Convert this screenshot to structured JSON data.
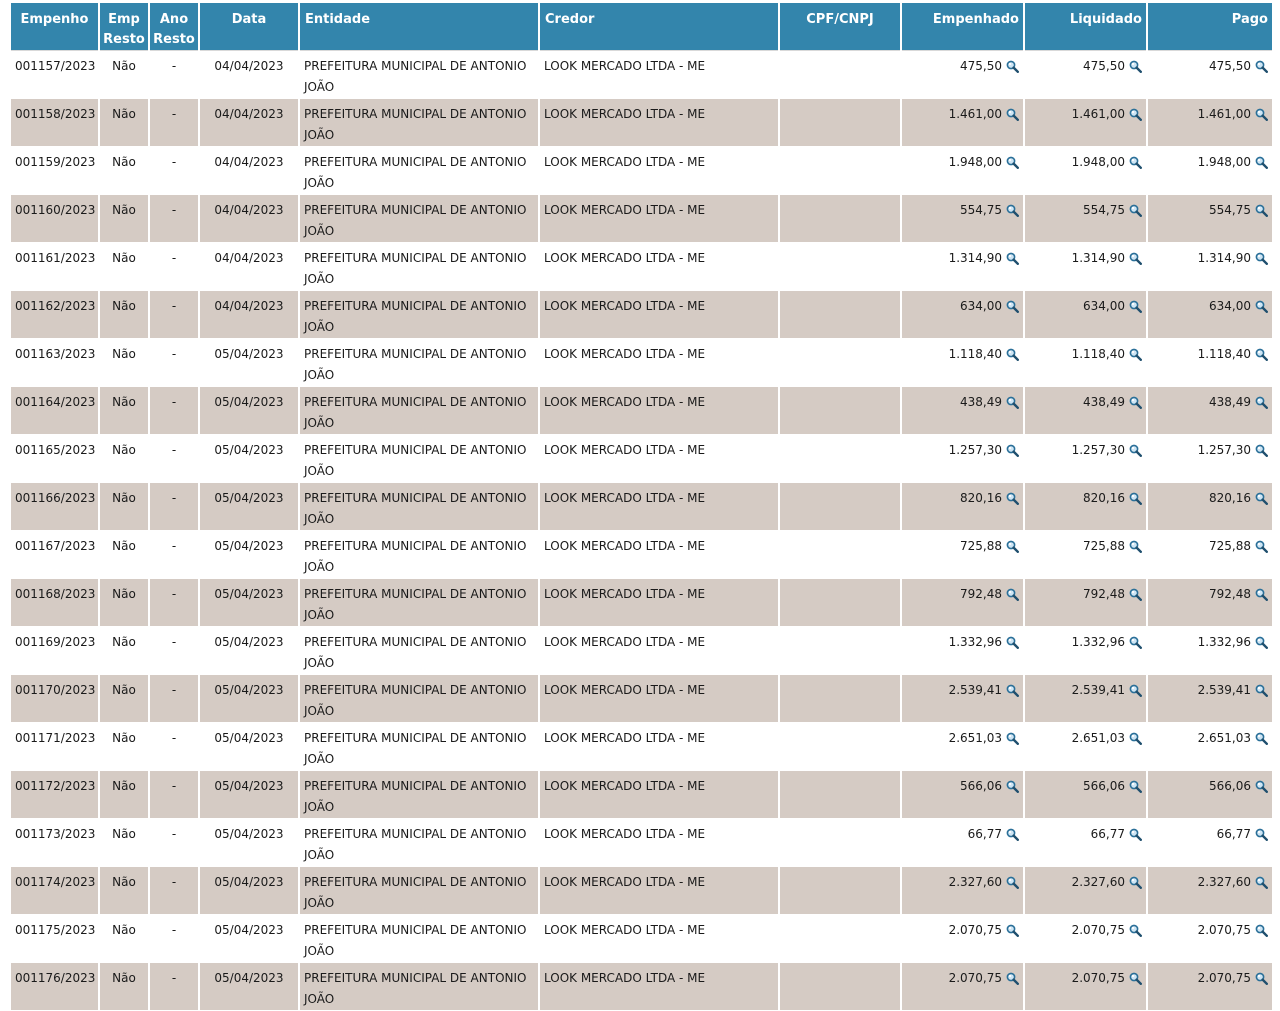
{
  "columns": {
    "empenho": "Empenho",
    "emp_resto": "Emp Resto",
    "ano_resto": "Ano Resto",
    "data": "Data",
    "entidade": "Entidade",
    "credor": "Credor",
    "cpf_cnpj": "CPF/CNPJ",
    "empenhado": "Empenhado",
    "liquidado": "Liquidado",
    "pago": "Pago"
  },
  "icon": "magnifier-icon",
  "rows": [
    {
      "empenho": "001157/2023",
      "emp_resto": "Não",
      "ano_resto": "-",
      "data": "04/04/2023",
      "entidade": "PREFEITURA MUNICIPAL DE ANTONIO JOÃO",
      "credor": "LOOK MERCADO LTDA - ME",
      "cpf": "",
      "empenhado": "475,50",
      "liquidado": "475,50",
      "pago": "475,50"
    },
    {
      "empenho": "001158/2023",
      "emp_resto": "Não",
      "ano_resto": "-",
      "data": "04/04/2023",
      "entidade": "PREFEITURA MUNICIPAL DE ANTONIO JOÃO",
      "credor": "LOOK MERCADO LTDA - ME",
      "cpf": "",
      "empenhado": "1.461,00",
      "liquidado": "1.461,00",
      "pago": "1.461,00"
    },
    {
      "empenho": "001159/2023",
      "emp_resto": "Não",
      "ano_resto": "-",
      "data": "04/04/2023",
      "entidade": "PREFEITURA MUNICIPAL DE ANTONIO JOÃO",
      "credor": "LOOK MERCADO LTDA - ME",
      "cpf": "",
      "empenhado": "1.948,00",
      "liquidado": "1.948,00",
      "pago": "1.948,00"
    },
    {
      "empenho": "001160/2023",
      "emp_resto": "Não",
      "ano_resto": "-",
      "data": "04/04/2023",
      "entidade": "PREFEITURA MUNICIPAL DE ANTONIO JOÃO",
      "credor": "LOOK MERCADO LTDA - ME",
      "cpf": "",
      "empenhado": "554,75",
      "liquidado": "554,75",
      "pago": "554,75"
    },
    {
      "empenho": "001161/2023",
      "emp_resto": "Não",
      "ano_resto": "-",
      "data": "04/04/2023",
      "entidade": "PREFEITURA MUNICIPAL DE ANTONIO JOÃO",
      "credor": "LOOK MERCADO LTDA - ME",
      "cpf": "",
      "empenhado": "1.314,90",
      "liquidado": "1.314,90",
      "pago": "1.314,90"
    },
    {
      "empenho": "001162/2023",
      "emp_resto": "Não",
      "ano_resto": "-",
      "data": "04/04/2023",
      "entidade": "PREFEITURA MUNICIPAL DE ANTONIO JOÃO",
      "credor": "LOOK MERCADO LTDA - ME",
      "cpf": "",
      "empenhado": "634,00",
      "liquidado": "634,00",
      "pago": "634,00"
    },
    {
      "empenho": "001163/2023",
      "emp_resto": "Não",
      "ano_resto": "-",
      "data": "05/04/2023",
      "entidade": "PREFEITURA MUNICIPAL DE ANTONIO JOÃO",
      "credor": "LOOK MERCADO LTDA - ME",
      "cpf": "",
      "empenhado": "1.118,40",
      "liquidado": "1.118,40",
      "pago": "1.118,40"
    },
    {
      "empenho": "001164/2023",
      "emp_resto": "Não",
      "ano_resto": "-",
      "data": "05/04/2023",
      "entidade": "PREFEITURA MUNICIPAL DE ANTONIO JOÃO",
      "credor": "LOOK MERCADO LTDA - ME",
      "cpf": "",
      "empenhado": "438,49",
      "liquidado": "438,49",
      "pago": "438,49"
    },
    {
      "empenho": "001165/2023",
      "emp_resto": "Não",
      "ano_resto": "-",
      "data": "05/04/2023",
      "entidade": "PREFEITURA MUNICIPAL DE ANTONIO JOÃO",
      "credor": "LOOK MERCADO LTDA - ME",
      "cpf": "",
      "empenhado": "1.257,30",
      "liquidado": "1.257,30",
      "pago": "1.257,30"
    },
    {
      "empenho": "001166/2023",
      "emp_resto": "Não",
      "ano_resto": "-",
      "data": "05/04/2023",
      "entidade": "PREFEITURA MUNICIPAL DE ANTONIO JOÃO",
      "credor": "LOOK MERCADO LTDA - ME",
      "cpf": "",
      "empenhado": "820,16",
      "liquidado": "820,16",
      "pago": "820,16"
    },
    {
      "empenho": "001167/2023",
      "emp_resto": "Não",
      "ano_resto": "-",
      "data": "05/04/2023",
      "entidade": "PREFEITURA MUNICIPAL DE ANTONIO JOÃO",
      "credor": "LOOK MERCADO LTDA - ME",
      "cpf": "",
      "empenhado": "725,88",
      "liquidado": "725,88",
      "pago": "725,88"
    },
    {
      "empenho": "001168/2023",
      "emp_resto": "Não",
      "ano_resto": "-",
      "data": "05/04/2023",
      "entidade": "PREFEITURA MUNICIPAL DE ANTONIO JOÃO",
      "credor": "LOOK MERCADO LTDA - ME",
      "cpf": "",
      "empenhado": "792,48",
      "liquidado": "792,48",
      "pago": "792,48"
    },
    {
      "empenho": "001169/2023",
      "emp_resto": "Não",
      "ano_resto": "-",
      "data": "05/04/2023",
      "entidade": "PREFEITURA MUNICIPAL DE ANTONIO JOÃO",
      "credor": "LOOK MERCADO LTDA - ME",
      "cpf": "",
      "empenhado": "1.332,96",
      "liquidado": "1.332,96",
      "pago": "1.332,96"
    },
    {
      "empenho": "001170/2023",
      "emp_resto": "Não",
      "ano_resto": "-",
      "data": "05/04/2023",
      "entidade": "PREFEITURA MUNICIPAL DE ANTONIO JOÃO",
      "credor": "LOOK MERCADO LTDA - ME",
      "cpf": "",
      "empenhado": "2.539,41",
      "liquidado": "2.539,41",
      "pago": "2.539,41"
    },
    {
      "empenho": "001171/2023",
      "emp_resto": "Não",
      "ano_resto": "-",
      "data": "05/04/2023",
      "entidade": "PREFEITURA MUNICIPAL DE ANTONIO JOÃO",
      "credor": "LOOK MERCADO LTDA - ME",
      "cpf": "",
      "empenhado": "2.651,03",
      "liquidado": "2.651,03",
      "pago": "2.651,03"
    },
    {
      "empenho": "001172/2023",
      "emp_resto": "Não",
      "ano_resto": "-",
      "data": "05/04/2023",
      "entidade": "PREFEITURA MUNICIPAL DE ANTONIO JOÃO",
      "credor": "LOOK MERCADO LTDA - ME",
      "cpf": "",
      "empenhado": "566,06",
      "liquidado": "566,06",
      "pago": "566,06"
    },
    {
      "empenho": "001173/2023",
      "emp_resto": "Não",
      "ano_resto": "-",
      "data": "05/04/2023",
      "entidade": "PREFEITURA MUNICIPAL DE ANTONIO JOÃO",
      "credor": "LOOK MERCADO LTDA - ME",
      "cpf": "",
      "empenhado": "66,77",
      "liquidado": "66,77",
      "pago": "66,77"
    },
    {
      "empenho": "001174/2023",
      "emp_resto": "Não",
      "ano_resto": "-",
      "data": "05/04/2023",
      "entidade": "PREFEITURA MUNICIPAL DE ANTONIO JOÃO",
      "credor": "LOOK MERCADO LTDA - ME",
      "cpf": "",
      "empenhado": "2.327,60",
      "liquidado": "2.327,60",
      "pago": "2.327,60"
    },
    {
      "empenho": "001175/2023",
      "emp_resto": "Não",
      "ano_resto": "-",
      "data": "05/04/2023",
      "entidade": "PREFEITURA MUNICIPAL DE ANTONIO JOÃO",
      "credor": "LOOK MERCADO LTDA - ME",
      "cpf": "",
      "empenhado": "2.070,75",
      "liquidado": "2.070,75",
      "pago": "2.070,75"
    },
    {
      "empenho": "001176/2023",
      "emp_resto": "Não",
      "ano_resto": "-",
      "data": "05/04/2023",
      "entidade": "PREFEITURA MUNICIPAL DE ANTONIO JOÃO",
      "credor": "LOOK MERCADO LTDA - ME",
      "cpf": "",
      "empenhado": "2.070,75",
      "liquidado": "2.070,75",
      "pago": "2.070,75"
    }
  ]
}
